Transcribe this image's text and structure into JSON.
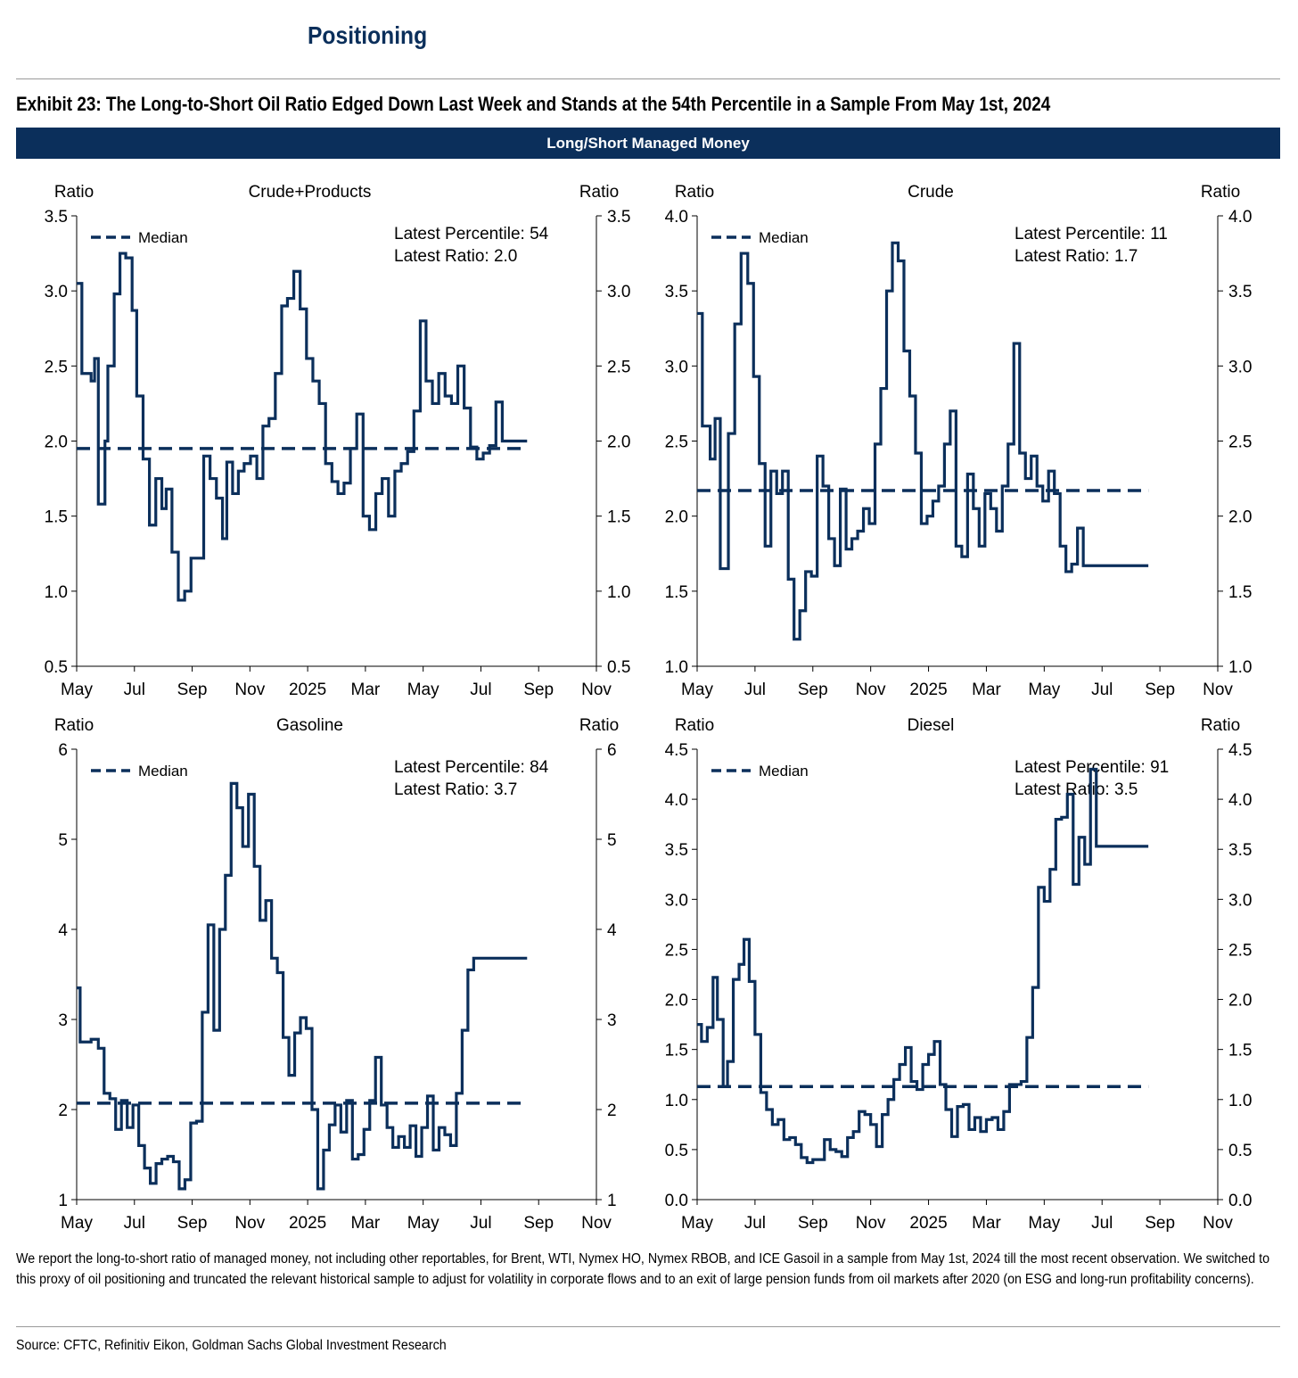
{
  "header": {
    "section_title": "Positioning",
    "exhibit_title": "Exhibit 23: The Long-to-Short Oil Ratio Edged Down Last Week and Stands at the 54th Percentile in a Sample From May 1st, 2024",
    "banner": "Long/Short Managed Money"
  },
  "footnote": "We report the long-to-short ratio of managed money, not including other reportables, for Brent, WTI, Nymex HO, Nymex RBOB, and ICE Gasoil in a sample from May 1st, 2024 till the most recent observation. We switched to this proxy of oil positioning and truncated the relevant historical sample to adjust for volatility in corporate flows and to an exit of large pension funds from oil markets after 2020 (on ESG and long-run profitability concerns).",
  "source": "Source: CFTC, Refinitiv Eikon, Goldman Sachs Global Investment Research",
  "colors": {
    "series": "#0b2f5b",
    "banner": "#0b2f5b"
  },
  "chart_data": [
    {
      "type": "line",
      "title": "Crude+Products",
      "ylabel_left": "Ratio",
      "ylabel_right": "Ratio",
      "legend_label": "Median",
      "legend_position": "top-left",
      "annotation": [
        "Latest Percentile: 54",
        "Latest Ratio: 2.0"
      ],
      "ylim": [
        0.5,
        3.5
      ],
      "yticks": [
        0.5,
        1.0,
        1.5,
        2.0,
        2.5,
        3.0,
        3.5
      ],
      "ytick_labels": [
        "0.5",
        "1.0",
        "1.5",
        "2.0",
        "2.5",
        "3.0",
        "3.5"
      ],
      "xtick_labels": [
        "May",
        "Jul",
        "Sep",
        "Nov",
        "2025",
        "Mar",
        "May",
        "Jul",
        "Sep",
        "Nov"
      ],
      "x_range_months": [
        0,
        18
      ],
      "median": 1.95,
      "step": true,
      "series": [
        {
          "x": [
            0,
            0.18,
            0.5,
            0.62,
            0.75,
            0.98,
            1.08,
            1.3,
            1.5,
            1.7,
            1.92,
            2.08,
            2.3,
            2.52,
            2.74,
            2.95,
            3.1,
            3.3,
            3.52,
            3.74,
            3.96,
            4.18,
            4.4,
            4.62,
            4.84,
            5.05,
            5.2,
            5.4,
            5.6,
            5.8,
            6.02,
            6.24,
            6.45,
            6.66,
            6.88,
            7.1,
            7.3,
            7.52,
            7.74,
            7.96,
            8.18,
            8.4,
            8.62,
            8.84,
            9.05,
            9.26,
            9.48,
            9.7,
            9.92,
            10.14,
            10.36,
            10.58,
            10.8,
            11.02,
            11.24,
            11.46,
            11.68,
            11.9,
            12.1,
            12.32,
            12.54,
            12.76,
            12.98,
            13.2,
            13.42,
            13.64,
            13.86,
            14.08,
            14.3,
            14.52,
            14.74,
            14.96,
            15.18,
            15.4,
            15.6
          ],
          "values": [
            3.05,
            2.45,
            2.4,
            2.55,
            1.58,
            2.0,
            2.5,
            2.98,
            3.25,
            3.22,
            2.87,
            2.3,
            1.88,
            1.44,
            1.75,
            1.55,
            1.68,
            1.26,
            0.94,
            1.0,
            1.22,
            1.22,
            1.9,
            1.75,
            1.62,
            1.35,
            1.86,
            1.65,
            1.8,
            1.85,
            1.9,
            1.75,
            2.1,
            2.15,
            2.45,
            2.9,
            2.95,
            3.13,
            2.88,
            2.55,
            2.4,
            2.25,
            1.85,
            1.73,
            1.65,
            1.72,
            1.95,
            2.18,
            1.5,
            1.41,
            1.65,
            1.75,
            1.5,
            1.8,
            1.85,
            1.93,
            2.2,
            2.8,
            2.4,
            2.25,
            2.45,
            2.3,
            2.25,
            2.5,
            2.22,
            1.96,
            1.88,
            1.92,
            1.97,
            2.26,
            2.0,
            2.0,
            2.0,
            2.0,
            2.0
          ]
        }
      ]
    },
    {
      "type": "line",
      "title": "Crude",
      "ylabel_left": "Ratio",
      "ylabel_right": "Ratio",
      "legend_label": "Median",
      "legend_position": "top-left",
      "annotation": [
        "Latest Percentile: 11",
        "Latest Ratio: 1.7"
      ],
      "ylim": [
        1.0,
        4.0
      ],
      "yticks": [
        1.0,
        1.5,
        2.0,
        2.5,
        3.0,
        3.5,
        4.0
      ],
      "ytick_labels": [
        "1.0",
        "1.5",
        "2.0",
        "2.5",
        "3.0",
        "3.5",
        "4.0"
      ],
      "xtick_labels": [
        "May",
        "Jul",
        "Sep",
        "Nov",
        "2025",
        "Mar",
        "May",
        "Jul",
        "Sep",
        "Nov"
      ],
      "x_range_months": [
        0,
        18
      ],
      "median": 2.17,
      "step": true,
      "series": [
        {
          "x": [
            0,
            0.18,
            0.45,
            0.62,
            0.8,
            1.08,
            1.3,
            1.52,
            1.75,
            1.95,
            2.15,
            2.35,
            2.55,
            2.75,
            2.95,
            3.15,
            3.35,
            3.55,
            3.75,
            3.95,
            4.15,
            4.35,
            4.55,
            4.75,
            4.95,
            5.15,
            5.35,
            5.55,
            5.75,
            5.95,
            6.15,
            6.35,
            6.55,
            6.75,
            6.95,
            7.15,
            7.35,
            7.55,
            7.75,
            7.95,
            8.15,
            8.35,
            8.55,
            8.75,
            8.95,
            9.15,
            9.35,
            9.55,
            9.75,
            9.95,
            10.15,
            10.35,
            10.55,
            10.75,
            10.95,
            11.15,
            11.35,
            11.55,
            11.75,
            11.95,
            12.15,
            12.35,
            12.55,
            12.75,
            12.95,
            13.15,
            13.35,
            13.55,
            13.75,
            13.95,
            14.15,
            14.35,
            14.55,
            14.75,
            14.95,
            15.15,
            15.4,
            15.6
          ],
          "values": [
            3.35,
            2.6,
            2.38,
            2.65,
            1.65,
            2.55,
            3.28,
            3.75,
            3.55,
            2.93,
            2.35,
            1.8,
            2.3,
            2.15,
            2.3,
            1.58,
            1.18,
            1.37,
            1.63,
            1.6,
            2.4,
            2.2,
            1.85,
            1.67,
            2.18,
            1.78,
            1.85,
            1.9,
            2.05,
            1.95,
            2.48,
            2.85,
            3.5,
            3.82,
            3.7,
            3.1,
            2.8,
            2.42,
            1.95,
            2.0,
            2.1,
            2.2,
            2.48,
            2.7,
            1.8,
            1.73,
            2.28,
            2.05,
            1.8,
            2.15,
            2.05,
            1.9,
            2.2,
            2.48,
            3.15,
            2.42,
            2.25,
            2.4,
            2.2,
            2.1,
            2.3,
            2.15,
            1.8,
            1.63,
            1.68,
            1.92,
            1.67,
            1.67,
            1.67,
            1.67,
            1.67,
            1.67,
            1.67,
            1.67,
            1.67,
            1.67,
            1.67,
            1.67
          ]
        }
      ]
    },
    {
      "type": "line",
      "title": "Gasoline",
      "ylabel_left": "Ratio",
      "ylabel_right": "Ratio",
      "legend_label": "Median",
      "legend_position": "top-left",
      "annotation": [
        "Latest Percentile: 84",
        "Latest Ratio: 3.7"
      ],
      "ylim": [
        1,
        6
      ],
      "yticks": [
        1,
        2,
        3,
        4,
        5,
        6
      ],
      "ytick_labels": [
        "1",
        "2",
        "3",
        "4",
        "5",
        "6"
      ],
      "xtick_labels": [
        "May",
        "Jul",
        "Sep",
        "Nov",
        "2025",
        "Mar",
        "May",
        "Jul",
        "Sep",
        "Nov"
      ],
      "x_range_months": [
        0,
        18
      ],
      "median": 2.07,
      "step": true,
      "series": [
        {
          "x": [
            0,
            0.12,
            0.5,
            0.75,
            0.95,
            1.15,
            1.35,
            1.55,
            1.75,
            1.95,
            2.15,
            2.35,
            2.55,
            2.75,
            2.95,
            3.15,
            3.35,
            3.55,
            3.75,
            3.95,
            4.15,
            4.35,
            4.55,
            4.75,
            4.95,
            5.15,
            5.35,
            5.55,
            5.75,
            5.95,
            6.15,
            6.35,
            6.55,
            6.75,
            6.95,
            7.15,
            7.35,
            7.55,
            7.75,
            7.95,
            8.15,
            8.35,
            8.55,
            8.75,
            8.95,
            9.15,
            9.35,
            9.55,
            9.75,
            9.95,
            10.15,
            10.35,
            10.55,
            10.75,
            10.95,
            11.15,
            11.35,
            11.55,
            11.75,
            11.95,
            12.15,
            12.35,
            12.55,
            12.75,
            12.95,
            13.15,
            13.35,
            13.55,
            13.75,
            13.95,
            14.15,
            14.35,
            14.55,
            14.75,
            14.95,
            15.15,
            15.4,
            15.6
          ],
          "values": [
            3.35,
            2.75,
            2.78,
            2.68,
            2.18,
            2.12,
            1.78,
            2.1,
            1.8,
            2.05,
            1.6,
            1.35,
            1.18,
            1.4,
            1.45,
            1.48,
            1.42,
            1.12,
            1.22,
            1.85,
            1.87,
            3.08,
            4.05,
            2.88,
            4.0,
            4.6,
            5.62,
            5.35,
            4.92,
            5.5,
            4.7,
            4.1,
            4.32,
            3.68,
            3.52,
            2.8,
            2.38,
            2.85,
            3.02,
            2.9,
            2.0,
            1.12,
            1.55,
            1.83,
            2.05,
            1.75,
            2.1,
            1.45,
            1.5,
            1.78,
            2.1,
            2.58,
            2.05,
            1.8,
            1.58,
            1.7,
            1.58,
            1.82,
            1.48,
            1.8,
            2.15,
            1.55,
            1.8,
            1.72,
            1.6,
            2.18,
            2.88,
            3.55,
            3.68,
            3.68,
            3.68,
            3.68,
            3.68,
            3.68,
            3.68,
            3.68,
            3.68,
            3.68
          ]
        }
      ]
    },
    {
      "type": "line",
      "title": "Diesel",
      "ylabel_left": "Ratio",
      "ylabel_right": "Ratio",
      "legend_label": "Median",
      "legend_position": "top-left",
      "annotation": [
        "Latest Percentile: 91",
        "Latest Ratio: 3.5"
      ],
      "ylim": [
        0.0,
        4.5
      ],
      "yticks": [
        0.0,
        0.5,
        1.0,
        1.5,
        2.0,
        2.5,
        3.0,
        3.5,
        4.0,
        4.5
      ],
      "ytick_labels": [
        "0.0",
        "0.5",
        "1.0",
        "1.5",
        "2.0",
        "2.5",
        "3.0",
        "3.5",
        "4.0",
        "4.5"
      ],
      "xtick_labels": [
        "May",
        "Jul",
        "Sep",
        "Nov",
        "2025",
        "Mar",
        "May",
        "Jul",
        "Sep",
        "Nov"
      ],
      "x_range_months": [
        0,
        18
      ],
      "median": 1.13,
      "step": true,
      "series": [
        {
          "x": [
            0,
            0.15,
            0.35,
            0.55,
            0.7,
            0.9,
            1.05,
            1.25,
            1.45,
            1.62,
            1.8,
            2.0,
            2.2,
            2.4,
            2.6,
            2.8,
            3.0,
            3.2,
            3.4,
            3.6,
            3.8,
            4.0,
            4.2,
            4.4,
            4.6,
            4.8,
            5.0,
            5.2,
            5.4,
            5.6,
            5.8,
            6.0,
            6.2,
            6.4,
            6.6,
            6.8,
            7.0,
            7.2,
            7.4,
            7.6,
            7.8,
            8.0,
            8.2,
            8.4,
            8.6,
            8.8,
            9.0,
            9.2,
            9.4,
            9.6,
            9.8,
            10.0,
            10.2,
            10.4,
            10.6,
            10.8,
            11.0,
            11.2,
            11.4,
            11.6,
            11.8,
            12.0,
            12.2,
            12.4,
            12.6,
            12.8,
            13.0,
            13.2,
            13.4,
            13.6,
            13.8,
            14.0,
            14.2,
            14.4,
            14.6,
            14.8,
            15.0,
            15.2,
            15.4,
            15.6
          ],
          "values": [
            1.75,
            1.58,
            1.72,
            2.22,
            1.8,
            1.13,
            1.38,
            2.2,
            2.35,
            2.6,
            2.18,
            1.65,
            1.07,
            0.9,
            0.75,
            0.8,
            0.6,
            0.62,
            0.55,
            0.42,
            0.37,
            0.4,
            0.4,
            0.6,
            0.5,
            0.48,
            0.43,
            0.62,
            0.68,
            0.88,
            0.85,
            0.75,
            0.53,
            0.85,
            1.0,
            1.2,
            1.35,
            1.52,
            1.18,
            1.1,
            1.35,
            1.45,
            1.58,
            1.15,
            0.9,
            0.63,
            0.93,
            0.95,
            0.7,
            0.82,
            0.68,
            0.8,
            0.82,
            0.7,
            0.88,
            1.15,
            1.15,
            1.18,
            1.62,
            2.12,
            3.12,
            2.98,
            3.3,
            3.8,
            3.82,
            4.05,
            3.15,
            3.62,
            3.35,
            4.3,
            3.53,
            3.53,
            3.53,
            3.53,
            3.53,
            3.53,
            3.53,
            3.53,
            3.53,
            3.53
          ]
        }
      ]
    }
  ]
}
